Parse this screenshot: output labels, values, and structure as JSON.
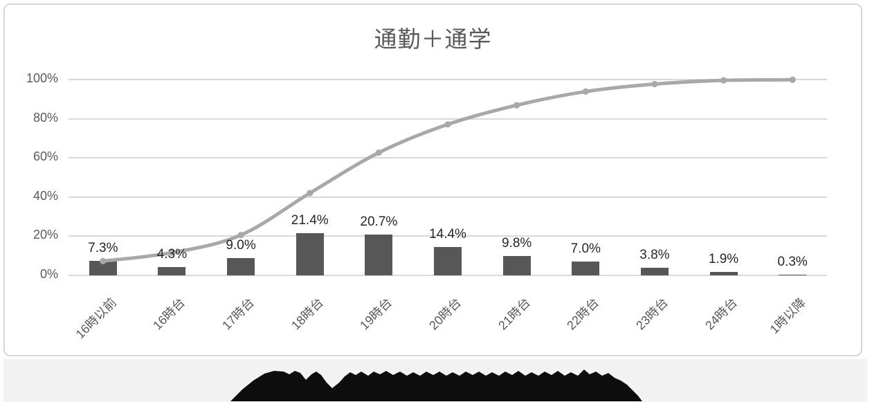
{
  "chart_data": {
    "type": "bar+line",
    "subtype": "pareto",
    "title": "通勤＋通学",
    "categories": [
      "16時以前",
      "16時台",
      "17時台",
      "18時台",
      "19時台",
      "20時台",
      "21時台",
      "22時台",
      "23時台",
      "24時台",
      "1時以降"
    ],
    "series": [
      {
        "name": "bars",
        "type": "bar",
        "values": [
          7.3,
          4.3,
          9.0,
          21.4,
          20.7,
          14.4,
          9.8,
          7.0,
          3.8,
          1.9,
          0.3
        ],
        "data_labels": [
          "7.3%",
          "4.3%",
          "9.0%",
          "21.4%",
          "20.7%",
          "14.4%",
          "9.8%",
          "7.0%",
          "3.8%",
          "1.9%",
          "0.3%"
        ],
        "color": "#575757"
      },
      {
        "name": "cumulative-line",
        "type": "line",
        "smooth": true,
        "markers": true,
        "values": [
          7.3,
          11.6,
          20.6,
          42.0,
          62.7,
          77.1,
          86.9,
          93.9,
          97.7,
          99.6,
          99.9
        ],
        "estimated_from_gridlines": true,
        "color": "#a8a8a8"
      }
    ],
    "ylim": [
      0,
      100
    ],
    "yticks": [
      "0%",
      "20%",
      "40%",
      "60%",
      "80%",
      "100%"
    ],
    "grid": "horizontal",
    "legend": "none",
    "x_label_rotation": -45
  },
  "caption": {
    "redacted": true
  },
  "colors": {
    "chart_border": "#d7d7d7",
    "gridline": "#d9d9d9",
    "bar": "#575757",
    "line": "#a8a8a8",
    "title_text": "#595959",
    "axis_text": "#595959",
    "data_label_text": "#262626",
    "bottom_band": "#f2f2f2",
    "redaction": "#0d0d0d",
    "background": "#ffffff"
  }
}
